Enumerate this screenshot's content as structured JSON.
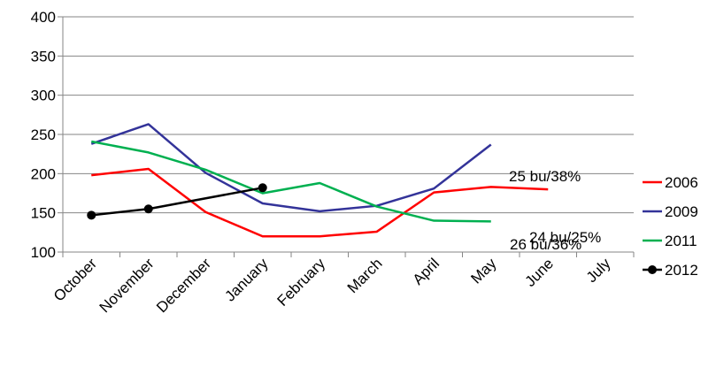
{
  "chart_data": {
    "type": "line",
    "categories": [
      "October",
      "November",
      "December",
      "January",
      "February",
      "March",
      "April",
      "May",
      "June",
      "July"
    ],
    "ylim": [
      100,
      400
    ],
    "yticks": [
      100,
      150,
      200,
      250,
      300,
      350,
      400
    ],
    "grid": true,
    "legend_position": "right",
    "series": [
      {
        "name": "2006",
        "color": "#ff0000",
        "values": [
          198,
          206,
          151,
          120,
          120,
          126,
          176,
          183,
          180,
          null
        ],
        "marker": "none"
      },
      {
        "name": "2009",
        "color": "#333399",
        "values": [
          238,
          263,
          201,
          162,
          152,
          159,
          181,
          237,
          null,
          null
        ],
        "marker": "none"
      },
      {
        "name": "2011",
        "color": "#00b050",
        "values": [
          241,
          227,
          205,
          175,
          188,
          158,
          140,
          139,
          null,
          null
        ],
        "marker": "none"
      },
      {
        "name": "2012",
        "color": "#000000",
        "values": [
          147,
          155,
          null,
          182,
          null,
          null,
          null,
          null,
          null,
          null
        ],
        "marker": "circle"
      }
    ],
    "annotations": [
      {
        "text": "25 bu/38%",
        "series": "2009"
      },
      {
        "text": "24 bu/25%",
        "series": "2006"
      },
      {
        "text": "26 bu/36%",
        "series": "2011"
      }
    ]
  }
}
